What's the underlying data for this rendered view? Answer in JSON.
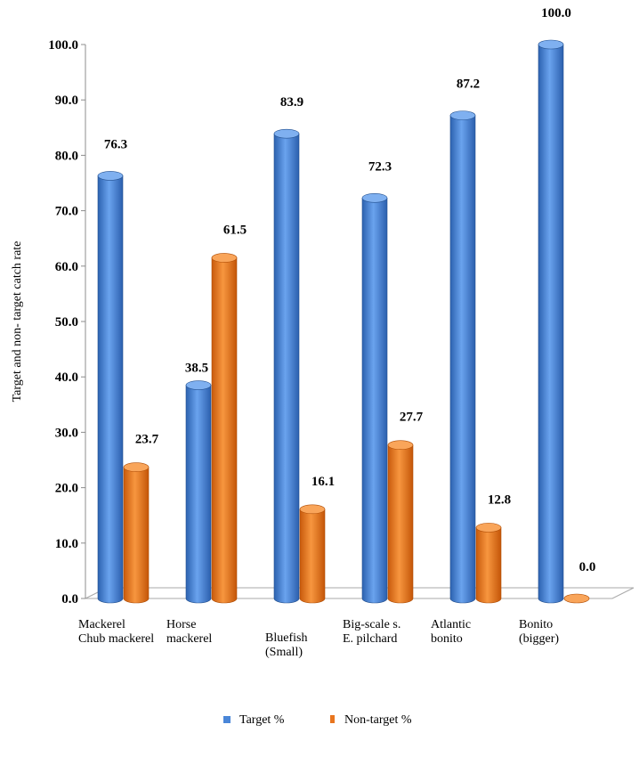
{
  "chart_data": {
    "type": "bar",
    "title": "",
    "xlabel": "",
    "ylabel": "Target and non- target catch rate",
    "ylim": [
      0,
      100
    ],
    "y_ticks": [
      "0.0",
      "10.0",
      "20.0",
      "30.0",
      "40.0",
      "50.0",
      "60.0",
      "70.0",
      "80.0",
      "90.0",
      "100.0"
    ],
    "categories": [
      [
        "Mackerel",
        "Chub mackerel"
      ],
      [
        "Horse",
        "mackerel"
      ],
      [
        "Bluefish",
        "(Small)"
      ],
      [
        "Big-scale s.",
        "E. pilchard"
      ],
      [
        "Atlantic",
        "bonito"
      ],
      [
        "Bonito",
        "(bigger)"
      ]
    ],
    "series": [
      {
        "name": "Target %",
        "color": "#4a86d8",
        "values": [
          76.3,
          38.5,
          83.9,
          72.3,
          87.2,
          100.0
        ],
        "labels": [
          "76.3",
          "38.5",
          "83.9",
          "72.3",
          "87.2",
          "100.0"
        ]
      },
      {
        "name": "Non-target %",
        "color": "#e8751e",
        "values": [
          23.7,
          61.5,
          16.1,
          27.7,
          12.8,
          0.0
        ],
        "labels": [
          "23.7",
          "61.5",
          "16.1",
          "27.7",
          "12.8",
          "0.0"
        ]
      }
    ],
    "legend_position": "bottom",
    "grid": false
  }
}
